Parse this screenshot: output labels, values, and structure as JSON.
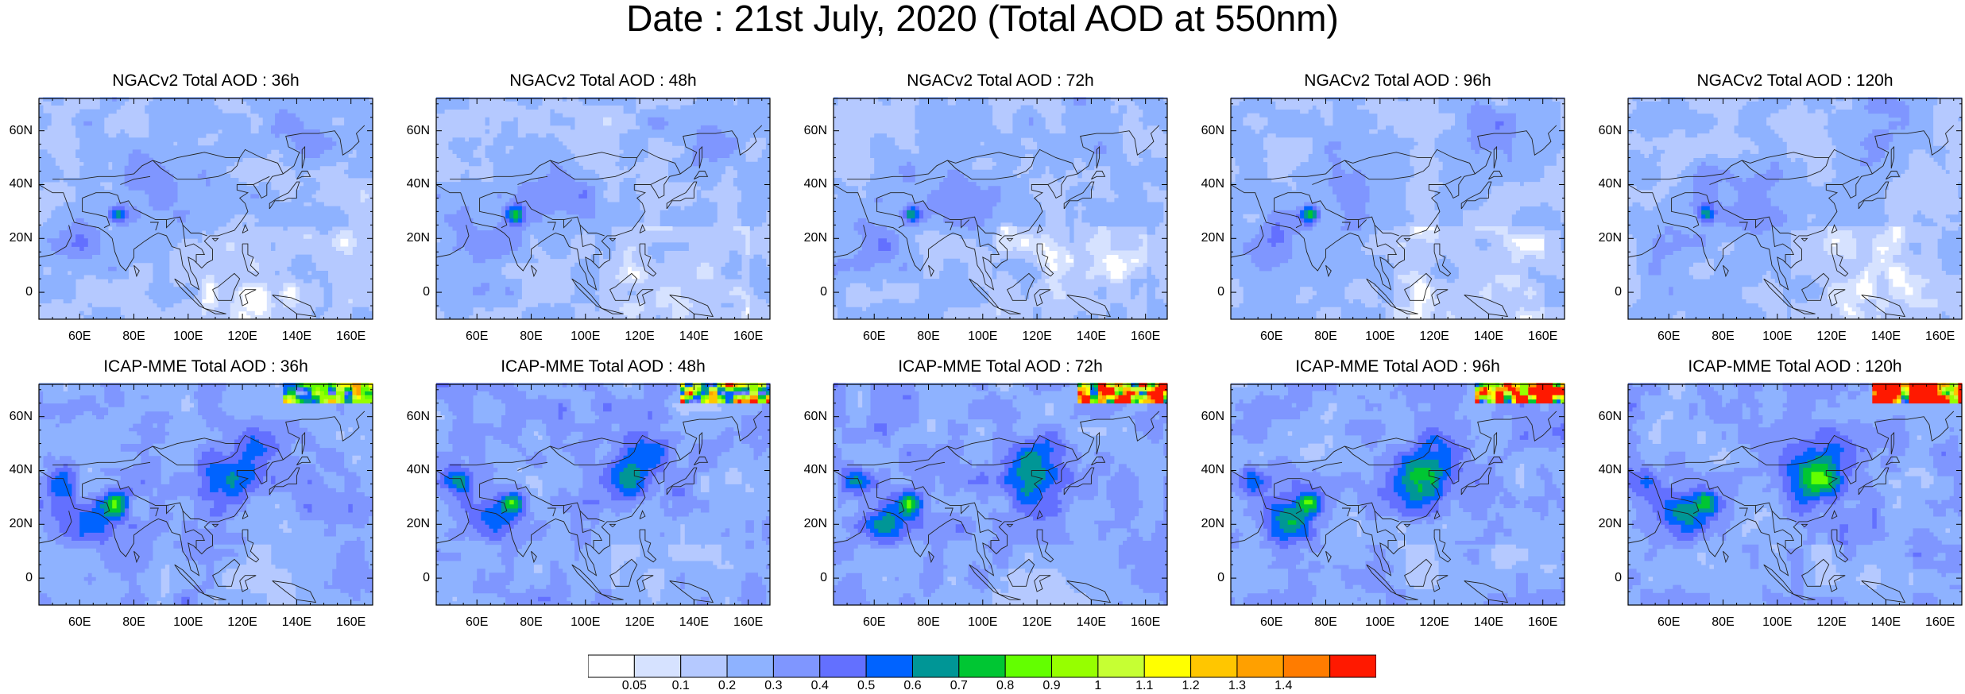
{
  "title": "Date : 21st July, 2020 (Total AOD at 550nm)",
  "lat_labels": [
    "60N",
    "40N",
    "20N",
    "0"
  ],
  "lon_labels": [
    "60E",
    "80E",
    "100E",
    "120E",
    "140E",
    "160E"
  ],
  "panels": [
    {
      "title": "NGACv2 Total AOD : 36h",
      "model": "ngac",
      "lead": 36
    },
    {
      "title": "NGACv2 Total AOD : 48h",
      "model": "ngac",
      "lead": 48
    },
    {
      "title": "NGACv2 Total AOD : 72h",
      "model": "ngac",
      "lead": 72
    },
    {
      "title": "NGACv2 Total AOD : 96h",
      "model": "ngac",
      "lead": 96
    },
    {
      "title": "NGACv2 Total AOD : 120h",
      "model": "ngac",
      "lead": 120
    },
    {
      "title": "ICAP-MME Total AOD : 36h",
      "model": "icap",
      "lead": 36
    },
    {
      "title": "ICAP-MME Total AOD : 48h",
      "model": "icap",
      "lead": 48
    },
    {
      "title": "ICAP-MME Total AOD : 72h",
      "model": "icap",
      "lead": 72
    },
    {
      "title": "ICAP-MME Total AOD : 96h",
      "model": "icap",
      "lead": 96
    },
    {
      "title": "ICAP-MME Total AOD : 120h",
      "model": "icap",
      "lead": 120
    }
  ],
  "colorbar": {
    "labels": [
      "0.05",
      "0.1",
      "0.2",
      "0.3",
      "0.4",
      "0.5",
      "0.6",
      "0.7",
      "0.8",
      "0.9",
      "1",
      "1.1",
      "1.2",
      "1.3",
      "1.4"
    ],
    "colors": [
      "#ffffff",
      "#d6e2ff",
      "#b5c9ff",
      "#8eb2ff",
      "#7f96ff",
      "#6370ff",
      "#0063ff",
      "#009696",
      "#00c633",
      "#63ff00",
      "#96ff00",
      "#c6ff33",
      "#ffff00",
      "#ffc600",
      "#ffa000",
      "#ff7c00",
      "#ff1900"
    ]
  }
}
